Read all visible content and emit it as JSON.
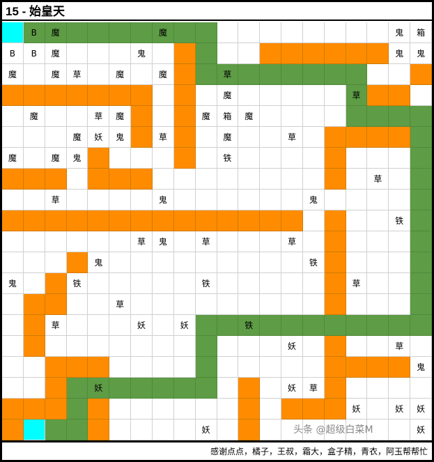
{
  "title": "15 - 始皇天",
  "footer": "感谢点点，橘子，王叔，霜大，盒子精，青衣，阿玉帮帮忙",
  "watermark": "头条 @超级白菜M",
  "colors": {
    "W": "#ffffff",
    "O": "#ff8c00",
    "G": "#5e9c45",
    "C": "#00ffff"
  },
  "rows": [
    {
      "fill": "CGGGGGGGGGWWWWWWWWWW",
      "text": {
        "1": "B",
        "2": "魔",
        "7": "魔",
        "18": "鬼",
        "19": "箱"
      }
    },
    {
      "fill": "WWWWWWWWOGWWOOOOOOWW",
      "text": {
        "0": "B",
        "1": "B",
        "2": "魔",
        "6": "鬼",
        "18": "鬼",
        "19": "鬼"
      }
    },
    {
      "fill": "WWWWWWWWOGGGGGGGGWWO",
      "text": {
        "0": "魔",
        "2": "魔",
        "3": "草",
        "5": "魔",
        "7": "魔",
        "10": "草"
      }
    },
    {
      "fill": "OOOOOOOWOWWWWWWWGOOW",
      "text": {
        "10": "魔",
        "16": "草"
      }
    },
    {
      "fill": "WWWWWWOWOWWWWWWWGGGG",
      "text": {
        "1": "魔",
        "4": "草",
        "5": "魔",
        "9": "魔",
        "10": "箱",
        "11": "魔"
      }
    },
    {
      "fill": "WWWWWWOWOWWWWWWOOOOG",
      "text": {
        "3": "魔",
        "4": "妖",
        "5": "鬼",
        "7": "草",
        "10": "魔",
        "13": "草"
      }
    },
    {
      "fill": "WWWWOWWWOWWWWWWOWWWG",
      "text": {
        "0": "魔",
        "2": "魔",
        "3": "鬼",
        "10": "铁"
      }
    },
    {
      "fill": "OOOWOOOWWWWWWWWOWWWG",
      "text": {
        "17": "草"
      }
    },
    {
      "fill": "WWWWWWWWWWWWWWWWWWWG",
      "text": {
        "2": "草",
        "7": "鬼",
        "14": "鬼"
      }
    },
    {
      "fill": "OOOOOOOOOOOOOOWOWWWG",
      "text": {
        "18": "铁"
      }
    },
    {
      "fill": "WWWWWWWWWWWWWWWOWWWG",
      "text": {
        "6": "草",
        "7": "鬼",
        "9": "草",
        "13": "草"
      }
    },
    {
      "fill": "WWWOWWWWWWWWWWWOWWWG",
      "text": {
        "4": "鬼",
        "14": "铁"
      }
    },
    {
      "fill": "WWOWWWWWWWWWWWWOWWWG",
      "text": {
        "0": "鬼",
        "3": "铁",
        "9": "铁",
        "16": "草"
      }
    },
    {
      "fill": "WOOWWWWWWWWWWWWOWWWG",
      "text": {
        "5": "草"
      }
    },
    {
      "fill": "WOWWWWWWWGGGGGGGGGGG",
      "text": {
        "2": "草",
        "6": "妖",
        "8": "妖",
        "11": "铁"
      }
    },
    {
      "fill": "WOWWWWWWWGWWWWWOWWWW",
      "text": {
        "13": "妖",
        "18": "草"
      }
    },
    {
      "fill": "WWOOOWWWWGWWWWWOOOOW",
      "text": {
        "19": "鬼"
      }
    },
    {
      "fill": "WWOGGGGGGGWOWWWOWWWW",
      "text": {
        "4": "妖",
        "13": "妖",
        "14": "草"
      }
    },
    {
      "fill": "OOOGOWWWWWWOWOOOWWWW",
      "text": {
        "16": "妖",
        "18": "妖",
        "19": "妖"
      }
    },
    {
      "fill": "OCGGOWWWWWWOWWWWWWWW",
      "text": {
        "9": "妖",
        "19": "妖"
      }
    }
  ]
}
